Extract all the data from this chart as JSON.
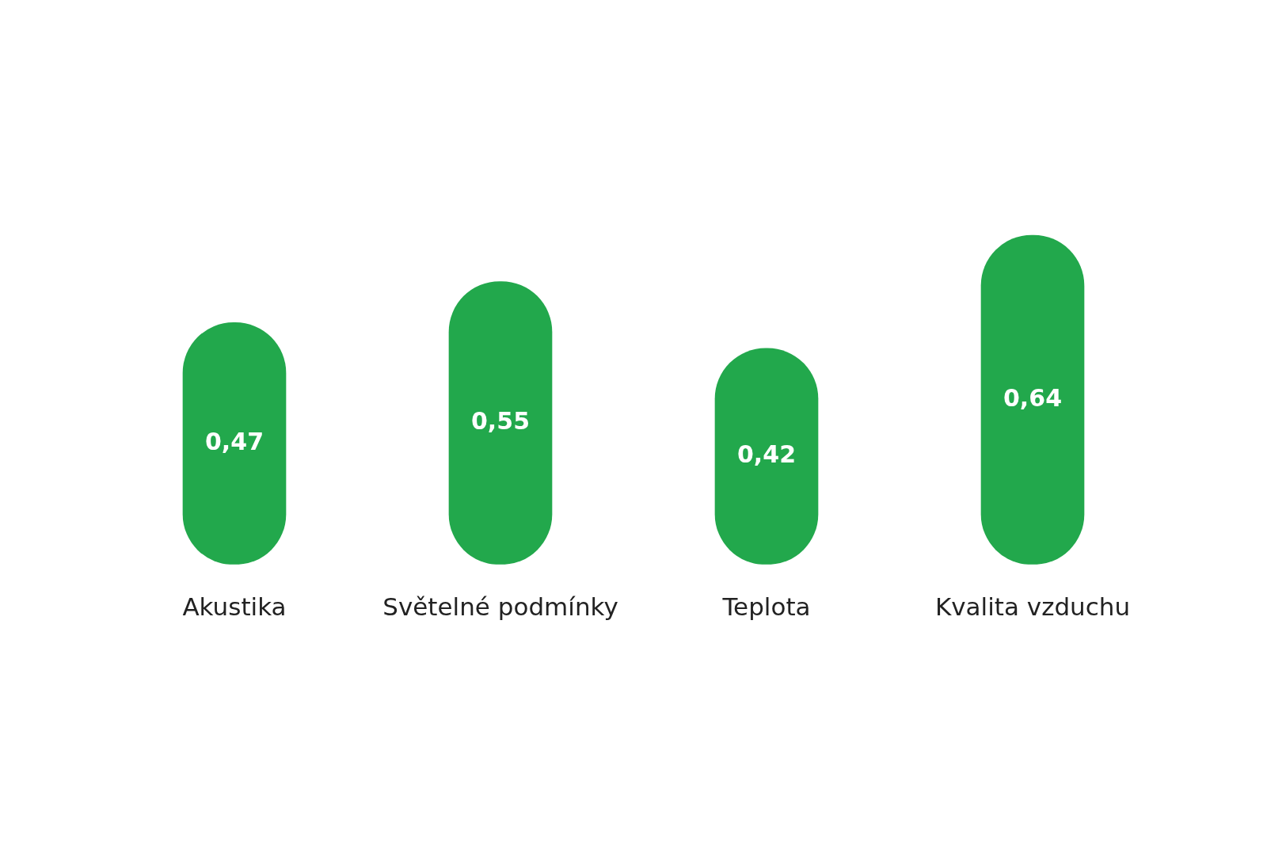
{
  "chart_data": {
    "type": "bar",
    "categories": [
      "Akustika",
      "Světelné podmínky",
      "Teplota",
      "Kvalita vzduchu"
    ],
    "values": [
      0.47,
      0.55,
      0.42,
      0.64
    ],
    "value_labels": [
      "0,47",
      "0,55",
      "0,42",
      "0,64"
    ],
    "color": "#22a84c"
  }
}
